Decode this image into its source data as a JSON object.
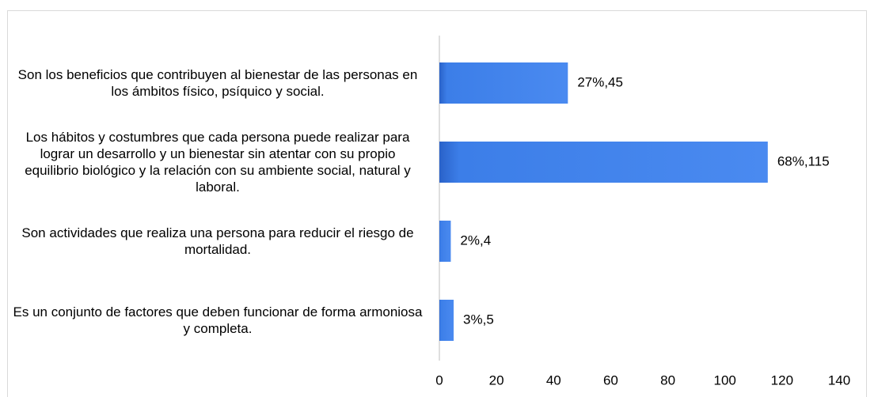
{
  "chart_data": {
    "type": "barh",
    "categories": [
      "Son los beneficios que contribuyen al bienestar de las personas en los ámbitos físico, psíquico y social.",
      "Los hábitos y costumbres que cada persona puede realizar para lograr un desarrollo y un bienestar sin atentar con su propio equilibrio biológico y la relación con su ambiente social, natural y laboral.",
      "Son actividades que realiza una persona para reducir el riesgo de mortalidad.",
      "Es un conjunto de factores que deben funcionar de forma armoniosa y completa."
    ],
    "values": [
      45,
      115,
      4,
      5
    ],
    "value_labels": [
      "27%,45",
      "68%,115",
      "2%,4",
      "3%,5"
    ],
    "color": "#3c7ee8",
    "xlim": [
      0,
      140
    ],
    "xticks": [
      0,
      20,
      40,
      60,
      80,
      100,
      120,
      140
    ],
    "grid": false
  }
}
